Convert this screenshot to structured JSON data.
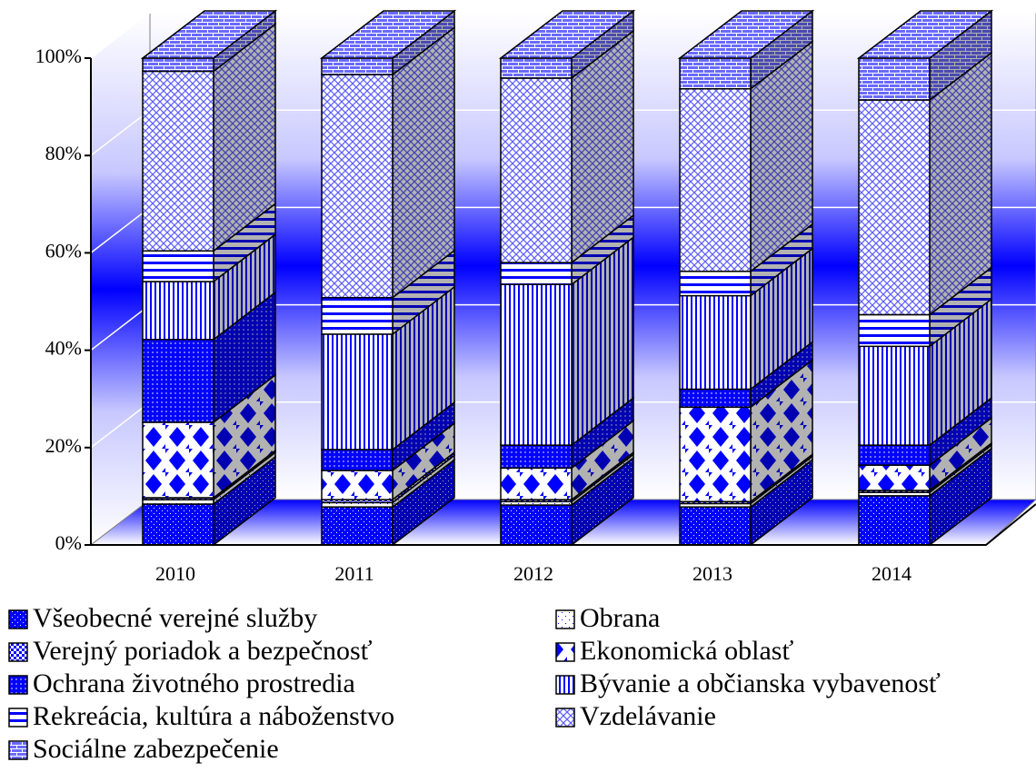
{
  "chart_data": {
    "type": "bar",
    "stacked": true,
    "percent": true,
    "categories": [
      "2010",
      "2011",
      "2012",
      "2013",
      "2014"
    ],
    "series": [
      {
        "name": "Všeobecné verejné služby",
        "color": "#0000ff",
        "values": [
          8.4,
          7.8,
          8.2,
          7.8,
          10.1
        ]
      },
      {
        "name": "Obrana",
        "color": "#0000ff",
        "values": [
          0.9,
          0.9,
          0.7,
          0.7,
          0.7
        ]
      },
      {
        "name": "Verejný poriadok a bezpečnosť",
        "color": "#0000ff",
        "values": [
          0.4,
          0.6,
          0.4,
          0.4,
          0.4
        ]
      },
      {
        "name": "Ekonomická oblasť",
        "color": "#0000ff",
        "values": [
          15.5,
          6,
          6.5,
          19.4,
          5.2
        ]
      },
      {
        "name": "Ochrana životného prostredia",
        "color": "#0000ff",
        "values": [
          17,
          4.3,
          4.7,
          3.7,
          4.1
        ]
      },
      {
        "name": "Bývanie a občianska vybavenosť",
        "color": "#0000ff",
        "values": [
          11.9,
          23.7,
          33,
          19.2,
          20.3
        ]
      },
      {
        "name": "Rekreácia, kultúra a náboženstvo",
        "color": "#0000ff",
        "values": [
          6.3,
          7.5,
          4.5,
          5,
          6.5
        ]
      },
      {
        "name": "Vzdelávanie",
        "color": "#0000ff",
        "values": [
          36.9,
          45.8,
          37.9,
          37.5,
          44.1
        ]
      },
      {
        "name": "Sociálne zabezpečenie",
        "color": "#0000ff",
        "values": [
          2.7,
          3.4,
          4.1,
          6.3,
          8.6
        ]
      }
    ],
    "ylim": [
      0,
      100
    ],
    "yticks": [
      {
        "value": 0,
        "label": "0%"
      },
      {
        "value": 20,
        "label": "20%"
      },
      {
        "value": 40,
        "label": "40%"
      },
      {
        "value": 60,
        "label": "60%"
      },
      {
        "value": 80,
        "label": "80%"
      },
      {
        "value": 100,
        "label": "100%"
      }
    ],
    "grid": true,
    "legend": "bottom"
  }
}
